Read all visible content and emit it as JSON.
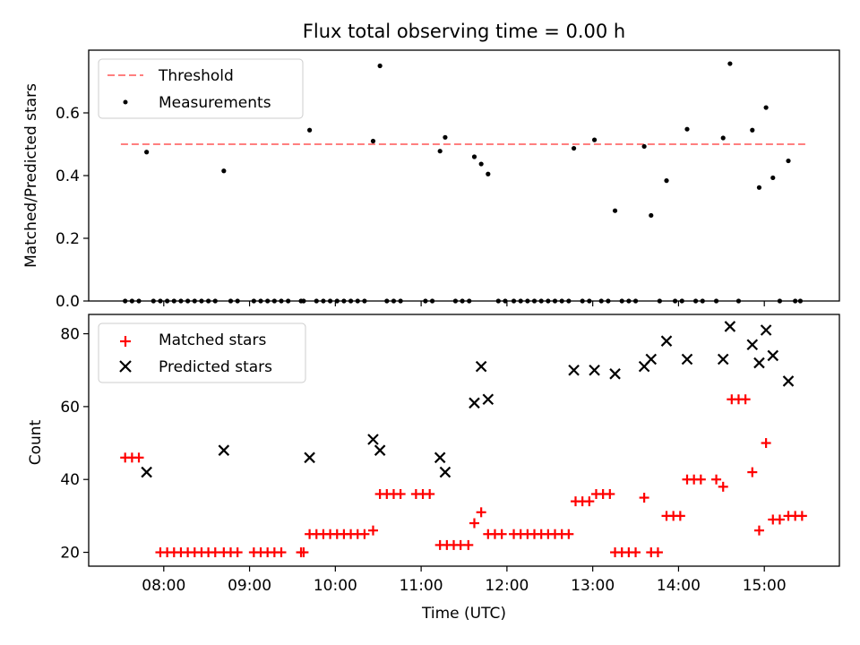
{
  "chart_data": [
    {
      "type": "scatter",
      "title": "Flux total observing time = 0.00 h",
      "xlabel": "",
      "ylabel": "Matched/Predicted stars",
      "xlim_hours": [
        7.125,
        15.875
      ],
      "ylim": [
        0,
        0.8
      ],
      "yticks": [
        0.0,
        0.2,
        0.4,
        0.6
      ],
      "ytick_labels": [
        "0.0",
        "0.2",
        "0.4",
        "0.6"
      ],
      "legend_position": "top-left",
      "legend": [
        "Threshold",
        "Measurements"
      ],
      "threshold": {
        "name": "Threshold",
        "y": 0.5,
        "x": [
          7.5,
          15.5
        ],
        "color": "#ff7f7f",
        "style": "dashed"
      },
      "series": [
        {
          "name": "Measurements",
          "color": "#000000",
          "marker": "dot",
          "points": [
            [
              7.55,
              0
            ],
            [
              7.63,
              0
            ],
            [
              7.71,
              0
            ],
            [
              7.8,
              0.475
            ],
            [
              7.88,
              0
            ],
            [
              7.96,
              0
            ],
            [
              8.04,
              0
            ],
            [
              8.12,
              0
            ],
            [
              8.2,
              0
            ],
            [
              8.28,
              0
            ],
            [
              8.36,
              0
            ],
            [
              8.44,
              0
            ],
            [
              8.52,
              0
            ],
            [
              8.6,
              0
            ],
            [
              8.7,
              0.415
            ],
            [
              8.78,
              0
            ],
            [
              8.86,
              0
            ],
            [
              9.05,
              0
            ],
            [
              9.13,
              0
            ],
            [
              9.21,
              0
            ],
            [
              9.29,
              0
            ],
            [
              9.37,
              0
            ],
            [
              9.45,
              0
            ],
            [
              9.6,
              0
            ],
            [
              9.63,
              0
            ],
            [
              9.7,
              0.545
            ],
            [
              9.78,
              0
            ],
            [
              9.86,
              0
            ],
            [
              9.94,
              0
            ],
            [
              10.02,
              0
            ],
            [
              10.1,
              0
            ],
            [
              10.18,
              0
            ],
            [
              10.26,
              0
            ],
            [
              10.34,
              0
            ],
            [
              10.44,
              0.51
            ],
            [
              10.52,
              0.75
            ],
            [
              10.6,
              0
            ],
            [
              10.68,
              0
            ],
            [
              10.76,
              0
            ],
            [
              11.05,
              0
            ],
            [
              11.13,
              0
            ],
            [
              11.22,
              0.478
            ],
            [
              11.28,
              0.522
            ],
            [
              11.4,
              0
            ],
            [
              11.48,
              0
            ],
            [
              11.56,
              0
            ],
            [
              11.62,
              0.46
            ],
            [
              11.7,
              0.437
            ],
            [
              11.78,
              0.405
            ],
            [
              11.9,
              0
            ],
            [
              11.98,
              0
            ],
            [
              12.08,
              0
            ],
            [
              12.16,
              0
            ],
            [
              12.24,
              0
            ],
            [
              12.32,
              0
            ],
            [
              12.4,
              0
            ],
            [
              12.48,
              0
            ],
            [
              12.56,
              0
            ],
            [
              12.64,
              0
            ],
            [
              12.72,
              0
            ],
            [
              12.78,
              0.487
            ],
            [
              12.88,
              0
            ],
            [
              12.96,
              0
            ],
            [
              13.02,
              0.514
            ],
            [
              13.1,
              0
            ],
            [
              13.18,
              0
            ],
            [
              13.26,
              0.288
            ],
            [
              13.34,
              0
            ],
            [
              13.42,
              0
            ],
            [
              13.5,
              0
            ],
            [
              13.6,
              0.493
            ],
            [
              13.68,
              0.273
            ],
            [
              13.78,
              0
            ],
            [
              13.86,
              0.384
            ],
            [
              13.96,
              0
            ],
            [
              14.04,
              0
            ],
            [
              14.1,
              0.548
            ],
            [
              14.2,
              0
            ],
            [
              14.28,
              0
            ],
            [
              14.44,
              0
            ],
            [
              14.52,
              0.52
            ],
            [
              14.6,
              0.757
            ],
            [
              14.7,
              0
            ],
            [
              14.86,
              0.545
            ],
            [
              14.94,
              0.362
            ],
            [
              15.02,
              0.617
            ],
            [
              15.1,
              0.393
            ],
            [
              15.18,
              0
            ],
            [
              15.28,
              0.447
            ],
            [
              15.36,
              0
            ],
            [
              15.42,
              0
            ]
          ]
        }
      ]
    },
    {
      "type": "scatter",
      "title": "",
      "xlabel": "Time (UTC)",
      "ylabel": "Count",
      "xlim_hours": [
        7.125,
        15.875
      ],
      "ylim": [
        16.2,
        85.3
      ],
      "yticks": [
        20,
        40,
        60,
        80
      ],
      "ytick_labels": [
        "20",
        "40",
        "60",
        "80"
      ],
      "xticks_hours": [
        8,
        9,
        10,
        11,
        12,
        13,
        14,
        15
      ],
      "xtick_labels": [
        "08:00",
        "09:00",
        "10:00",
        "11:00",
        "12:00",
        "13:00",
        "14:00",
        "15:00"
      ],
      "legend_position": "top-left",
      "legend": [
        "Matched stars",
        "Predicted stars"
      ],
      "series": [
        {
          "name": "Matched stars",
          "color": "#ff0000",
          "marker": "plus",
          "points": [
            [
              7.55,
              46
            ],
            [
              7.63,
              46
            ],
            [
              7.71,
              46
            ],
            [
              7.96,
              20
            ],
            [
              8.04,
              20
            ],
            [
              8.12,
              20
            ],
            [
              8.2,
              20
            ],
            [
              8.28,
              20
            ],
            [
              8.36,
              20
            ],
            [
              8.44,
              20
            ],
            [
              8.52,
              20
            ],
            [
              8.6,
              20
            ],
            [
              8.7,
              20
            ],
            [
              8.78,
              20
            ],
            [
              8.86,
              20
            ],
            [
              9.05,
              20
            ],
            [
              9.13,
              20
            ],
            [
              9.21,
              20
            ],
            [
              9.29,
              20
            ],
            [
              9.37,
              20
            ],
            [
              9.6,
              20
            ],
            [
              9.63,
              20
            ],
            [
              9.7,
              25
            ],
            [
              9.78,
              25
            ],
            [
              9.86,
              25
            ],
            [
              9.94,
              25
            ],
            [
              10.02,
              25
            ],
            [
              10.1,
              25
            ],
            [
              10.18,
              25
            ],
            [
              10.26,
              25
            ],
            [
              10.34,
              25
            ],
            [
              10.44,
              26
            ],
            [
              10.52,
              36
            ],
            [
              10.6,
              36
            ],
            [
              10.68,
              36
            ],
            [
              10.76,
              36
            ],
            [
              10.94,
              36
            ],
            [
              11.02,
              36
            ],
            [
              11.1,
              36
            ],
            [
              11.22,
              22
            ],
            [
              11.3,
              22
            ],
            [
              11.38,
              22
            ],
            [
              11.46,
              22
            ],
            [
              11.55,
              22
            ],
            [
              11.62,
              28
            ],
            [
              11.7,
              31
            ],
            [
              11.78,
              25
            ],
            [
              11.86,
              25
            ],
            [
              11.94,
              25
            ],
            [
              12.08,
              25
            ],
            [
              12.16,
              25
            ],
            [
              12.24,
              25
            ],
            [
              12.32,
              25
            ],
            [
              12.4,
              25
            ],
            [
              12.48,
              25
            ],
            [
              12.56,
              25
            ],
            [
              12.64,
              25
            ],
            [
              12.72,
              25
            ],
            [
              12.8,
              34
            ],
            [
              12.88,
              34
            ],
            [
              12.96,
              34
            ],
            [
              13.04,
              36
            ],
            [
              13.12,
              36
            ],
            [
              13.2,
              36
            ],
            [
              13.26,
              20
            ],
            [
              13.34,
              20
            ],
            [
              13.42,
              20
            ],
            [
              13.5,
              20
            ],
            [
              13.6,
              35
            ],
            [
              13.68,
              20
            ],
            [
              13.76,
              20
            ],
            [
              13.86,
              30
            ],
            [
              13.94,
              30
            ],
            [
              14.02,
              30
            ],
            [
              14.1,
              40
            ],
            [
              14.18,
              40
            ],
            [
              14.26,
              40
            ],
            [
              14.44,
              40
            ],
            [
              14.52,
              38
            ],
            [
              14.62,
              62
            ],
            [
              14.7,
              62
            ],
            [
              14.78,
              62
            ],
            [
              14.86,
              42
            ],
            [
              14.94,
              26
            ],
            [
              15.02,
              50
            ],
            [
              15.1,
              29
            ],
            [
              15.18,
              29
            ],
            [
              15.28,
              30
            ],
            [
              15.36,
              30
            ],
            [
              15.44,
              30
            ]
          ]
        },
        {
          "name": "Predicted stars",
          "color": "#000000",
          "marker": "x",
          "points": [
            [
              7.8,
              42
            ],
            [
              8.7,
              48
            ],
            [
              9.7,
              46
            ],
            [
              10.44,
              51
            ],
            [
              10.52,
              48
            ],
            [
              11.22,
              46
            ],
            [
              11.28,
              42
            ],
            [
              11.62,
              61
            ],
            [
              11.7,
              71
            ],
            [
              11.78,
              62
            ],
            [
              12.78,
              70
            ],
            [
              13.02,
              70
            ],
            [
              13.26,
              69
            ],
            [
              13.6,
              71
            ],
            [
              13.68,
              73
            ],
            [
              13.86,
              78
            ],
            [
              14.1,
              73
            ],
            [
              14.52,
              73
            ],
            [
              14.6,
              82
            ],
            [
              14.86,
              77
            ],
            [
              14.94,
              72
            ],
            [
              15.02,
              81
            ],
            [
              15.1,
              74
            ],
            [
              15.28,
              67
            ]
          ]
        }
      ]
    }
  ]
}
